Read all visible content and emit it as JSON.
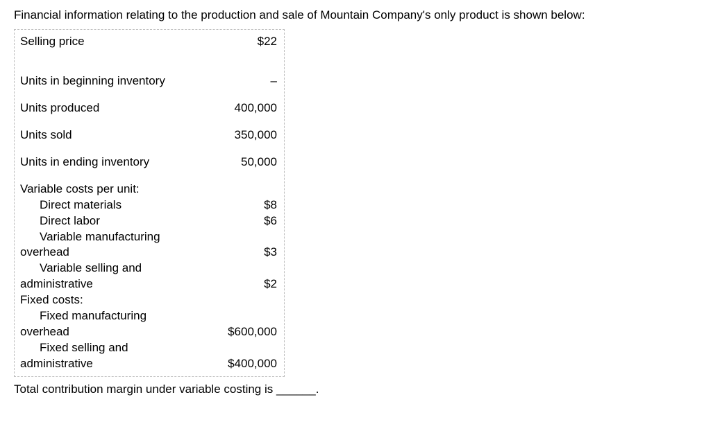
{
  "intro": "Financial information relating to the production and sale of Mountain Company's only product is shown below:",
  "table": {
    "selling_price": {
      "label": "Selling price",
      "value": "$22"
    },
    "beginning_inv": {
      "label": "Units in beginning inventory",
      "value": "–"
    },
    "units_produced": {
      "label": "Units produced",
      "value": "400,000"
    },
    "units_sold": {
      "label": "Units sold",
      "value": "350,000"
    },
    "ending_inv": {
      "label": "Units in ending inventory",
      "value": "50,000"
    },
    "var_header": "Variable costs per unit:",
    "dm": {
      "label": "Direct materials",
      "value": "$8"
    },
    "dl": {
      "label": "Direct labor",
      "value": "$6"
    },
    "vmoh_l1": "Variable manufacturing",
    "vmoh": {
      "label": "overhead",
      "value": "$3"
    },
    "vsa_l1": "Variable selling and",
    "vsa": {
      "label": "administrative",
      "value": "$2"
    },
    "fixed_header": "Fixed costs:",
    "fmoh_l1": "Fixed manufacturing",
    "fmoh": {
      "label": "overhead",
      "value": "$600,000"
    },
    "fsa_l1": "Fixed selling and",
    "fsa": {
      "label": "administrative",
      "value": "$400,000"
    }
  },
  "question": "Total contribution margin under variable costing is ______."
}
